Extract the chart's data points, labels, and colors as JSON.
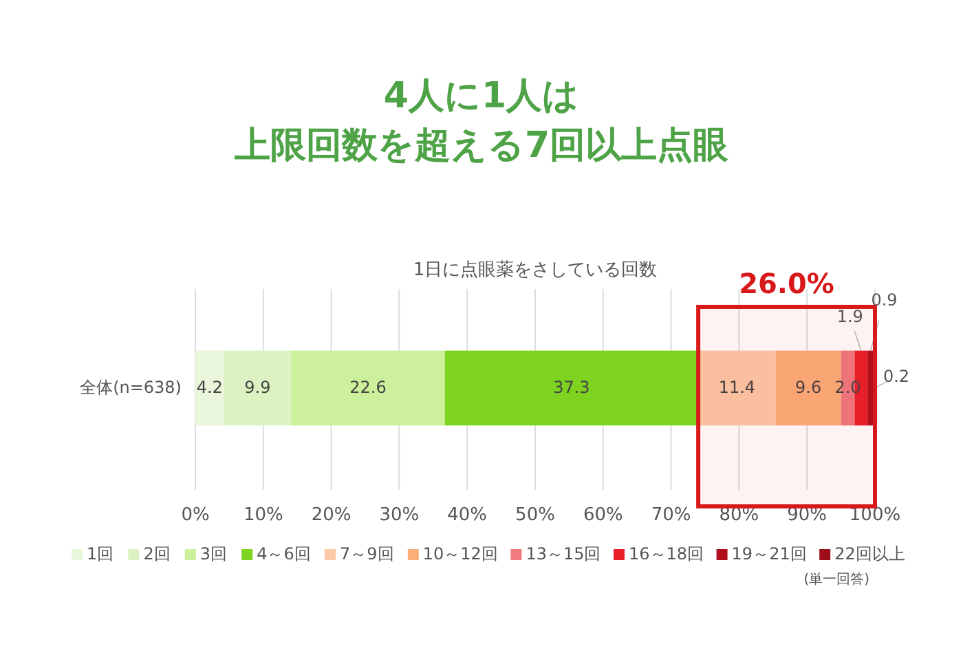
{
  "chart_data": {
    "type": "bar",
    "orientation": "horizontal",
    "stacked": true,
    "title": "4人に1人は",
    "subtitle": "上限回数を超える7回以上点眼",
    "categories": [
      "全体(n=638)"
    ],
    "series": [
      {
        "name": "1回",
        "color": "#eaf6dc",
        "values": [
          4.2
        ],
        "value_labels": [
          "4.2"
        ]
      },
      {
        "name": "2回",
        "color": "#dcf2c2",
        "values": [
          9.9
        ],
        "value_labels": [
          "9.9"
        ]
      },
      {
        "name": "3回",
        "color": "#ccf09c",
        "values": [
          22.6
        ],
        "value_labels": [
          "22.6"
        ]
      },
      {
        "name": "4～6回",
        "color": "#7ed321",
        "values": [
          37.3
        ],
        "value_labels": [
          "37.3"
        ]
      },
      {
        "name": "7～9回",
        "color": "#fcc9a6",
        "values": [
          11.4
        ],
        "value_labels": [
          "11.4"
        ]
      },
      {
        "name": "10～12回",
        "color": "#fbae7a",
        "values": [
          9.6
        ],
        "value_labels": [
          "9.6"
        ]
      },
      {
        "name": "13～15回",
        "color": "#f07a80",
        "values": [
          2.0
        ],
        "value_labels": [
          "2.0"
        ]
      },
      {
        "name": "16～18回",
        "color": "#e8202a",
        "values": [
          1.9
        ],
        "value_labels": [
          "1.9"
        ]
      },
      {
        "name": "19～21回",
        "color": "#b0101e",
        "values": [
          0.9
        ],
        "value_labels": [
          "0.9"
        ]
      },
      {
        "name": "22回以上",
        "color": "#9e0e1a",
        "values": [
          0.2
        ],
        "value_labels": [
          "0.2"
        ]
      }
    ],
    "xlim": [
      0,
      100
    ],
    "xticks": [
      {
        "value": 0,
        "label": "0%"
      },
      {
        "value": 10,
        "label": "10%"
      },
      {
        "value": 20,
        "label": "20%"
      },
      {
        "value": 30,
        "label": "30%"
      },
      {
        "value": 40,
        "label": "40%"
      },
      {
        "value": 50,
        "label": "50%"
      },
      {
        "value": 60,
        "label": "60%"
      },
      {
        "value": 70,
        "label": "70%"
      },
      {
        "value": 80,
        "label": "80%"
      },
      {
        "value": 90,
        "label": "90%"
      },
      {
        "value": 100,
        "label": "100%"
      }
    ],
    "grid": "x",
    "legend": "bottom",
    "bands": [
      {
        "axis": "x",
        "from": 74,
        "to": 100,
        "label": "26.0%",
        "color": "#d7191c"
      }
    ],
    "annotations": [
      "1日に点眼薬をさしている回数",
      "(単一回答)"
    ]
  }
}
